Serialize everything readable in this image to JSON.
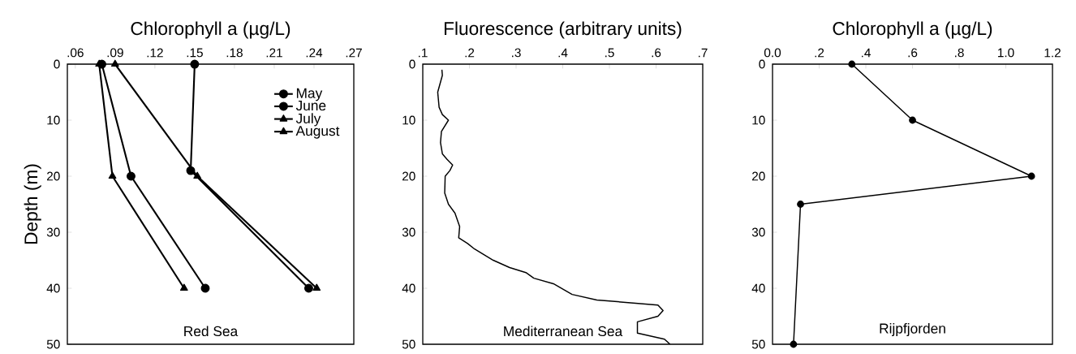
{
  "chart_data": [
    {
      "type": "line",
      "orientation": "horizontal",
      "xlabel": "Chlorophyll a (µg/L)",
      "ylabel": "Depth (m)",
      "xlim": [
        0.054,
        0.27
      ],
      "ylim": [
        50,
        0
      ],
      "xticks": [
        {
          "value": 0.06,
          "label": ".06"
        },
        {
          "value": 0.09,
          "label": ".09"
        },
        {
          "value": 0.12,
          "label": ".12"
        },
        {
          "value": 0.15,
          "label": ".15"
        },
        {
          "value": 0.18,
          "label": ".18"
        },
        {
          "value": 0.21,
          "label": ".21"
        },
        {
          "value": 0.24,
          "label": ".24"
        },
        {
          "value": 0.27,
          "label": ".27"
        }
      ],
      "yticks": [
        0,
        10,
        20,
        30,
        40,
        50
      ],
      "legend": "top right",
      "annotations": [
        "Red Sea"
      ],
      "series": [
        {
          "name": "May",
          "color": "#000000",
          "marker": "circle",
          "x": [
            0,
            19,
            40
          ],
          "values": [
            0.15,
            0.147,
            0.236
          ]
        },
        {
          "name": "June",
          "color": "#000000",
          "marker": "circle",
          "x": [
            0,
            20,
            40
          ],
          "values": [
            0.08,
            0.102,
            0.158
          ]
        },
        {
          "name": "July",
          "color": "#000000",
          "marker": "triangle",
          "x": [
            0,
            20,
            40
          ],
          "values": [
            0.078,
            0.088,
            0.142
          ]
        },
        {
          "name": "August",
          "color": "#000000",
          "marker": "triangle",
          "x": [
            0,
            20,
            40
          ],
          "values": [
            0.09,
            0.152,
            0.242
          ]
        }
      ]
    },
    {
      "type": "line",
      "orientation": "horizontal",
      "xlabel": "Fluorescence (arbitrary units)",
      "xlim": [
        0.1,
        0.7
      ],
      "ylim": [
        50,
        0
      ],
      "xticks": [
        {
          "value": 0.1,
          "label": ".1"
        },
        {
          "value": 0.2,
          "label": ".2"
        },
        {
          "value": 0.3,
          "label": ".3"
        },
        {
          "value": 0.4,
          "label": ".4"
        },
        {
          "value": 0.5,
          "label": ".5"
        },
        {
          "value": 0.6,
          "label": ".6"
        },
        {
          "value": 0.7,
          "label": ".7"
        }
      ],
      "yticks": [
        0,
        10,
        20,
        30,
        40,
        50
      ],
      "annotations": [
        "Mediterranean Sea"
      ],
      "series": [
        {
          "color": "#000000",
          "x": [
            1,
            2,
            5,
            7.7,
            9,
            10,
            12,
            14,
            16,
            17,
            18,
            19,
            20,
            23,
            25,
            26.6,
            29,
            31,
            32,
            33,
            35,
            36.3,
            37.2,
            38.2,
            39.2,
            41.1,
            42.1,
            43,
            44,
            45,
            46,
            48,
            49.1,
            50
          ],
          "values": [
            0.141,
            0.142,
            0.132,
            0.135,
            0.142,
            0.155,
            0.14,
            0.138,
            0.142,
            0.152,
            0.164,
            0.158,
            0.148,
            0.147,
            0.155,
            0.169,
            0.179,
            0.177,
            0.196,
            0.211,
            0.251,
            0.286,
            0.321,
            0.338,
            0.38,
            0.42,
            0.473,
            0.604,
            0.615,
            0.604,
            0.56,
            0.56,
            0.618,
            0.63
          ]
        }
      ]
    },
    {
      "type": "line",
      "orientation": "horizontal",
      "xlabel": "Chlorophyll a (µg/L)",
      "xlim": [
        0,
        1.2
      ],
      "ylim": [
        50,
        0
      ],
      "xticks": [
        {
          "value": 0,
          "label": "0.0"
        },
        {
          "value": 0.2,
          "label": ".2"
        },
        {
          "value": 0.4,
          "label": ".4"
        },
        {
          "value": 0.6,
          "label": ".6"
        },
        {
          "value": 0.8,
          "label": ".8"
        },
        {
          "value": 1.0,
          "label": "1.0"
        },
        1.2
      ],
      "yticks": [
        0,
        10,
        20,
        30,
        40,
        50
      ],
      "marker": "circle",
      "annotations": [
        "Rijpfjorden"
      ],
      "series": [
        {
          "color": "#000000",
          "x": [
            0,
            10,
            20,
            25,
            50
          ],
          "values": [
            0.34,
            0.6,
            1.11,
            0.12,
            0.09
          ]
        }
      ]
    }
  ]
}
